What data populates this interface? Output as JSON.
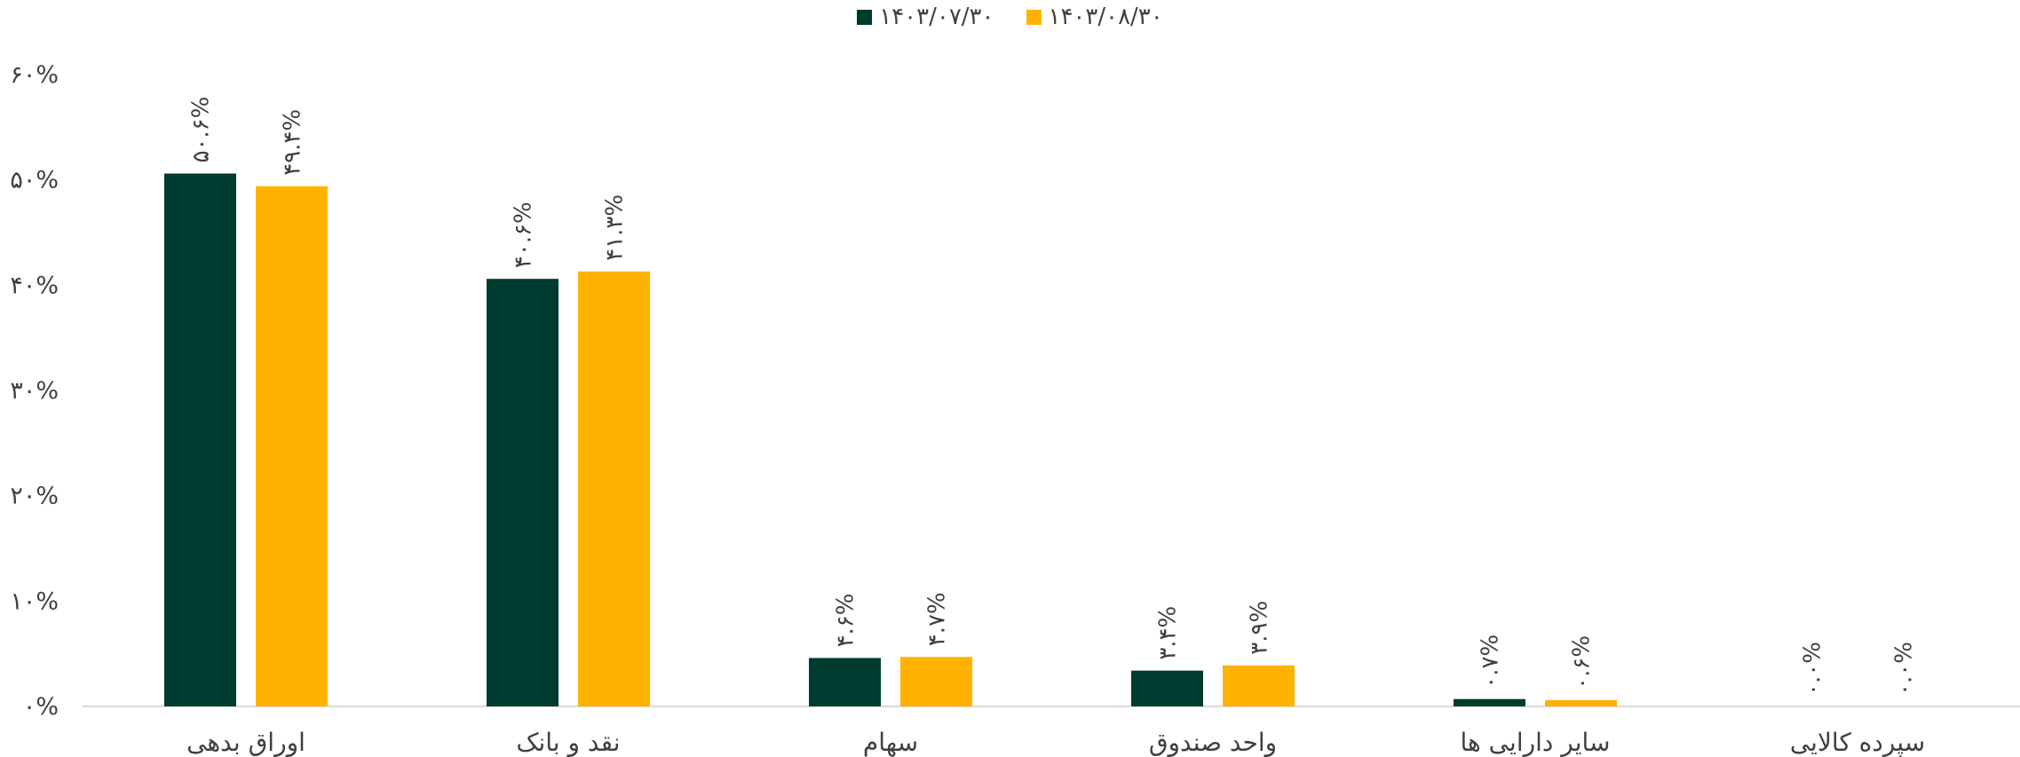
{
  "chart_data": {
    "type": "bar",
    "title": "",
    "xlabel": "",
    "ylabel": "",
    "categories": [
      "اوراق بدهی",
      "نقد و بانک",
      "سهام",
      "واحد صندوق",
      "سایر دارایی ها",
      "سپرده کالایی"
    ],
    "series": [
      {
        "name": "۱۴۰۳/۰۷/۳۰",
        "color": "#003b30",
        "values": [
          50.6,
          40.6,
          4.6,
          3.4,
          0.7,
          0.0
        ],
        "labels": [
          "۵۰.۶%",
          "۴۰.۶%",
          "۴.۶%",
          "۳.۴%",
          "۰.۷%",
          "۰.۰%"
        ]
      },
      {
        "name": "۱۴۰۳/۰۸/۳۰",
        "color": "#ffb300",
        "values": [
          49.4,
          41.3,
          4.7,
          3.9,
          0.6,
          0.0
        ],
        "labels": [
          "۴۹.۴%",
          "۴۱.۳%",
          "۴.۷%",
          "۳.۹%",
          "۰.۶%",
          "۰.۰%"
        ]
      }
    ],
    "ylim": [
      0,
      60
    ],
    "yticks": [
      0,
      10,
      20,
      30,
      40,
      50,
      60
    ],
    "ytick_labels": [
      "۰%",
      "۱۰%",
      "۲۰%",
      "۳۰%",
      "۴۰%",
      "۵۰%",
      "۶۰%"
    ],
    "legend_position": "top-center",
    "grid": false
  }
}
